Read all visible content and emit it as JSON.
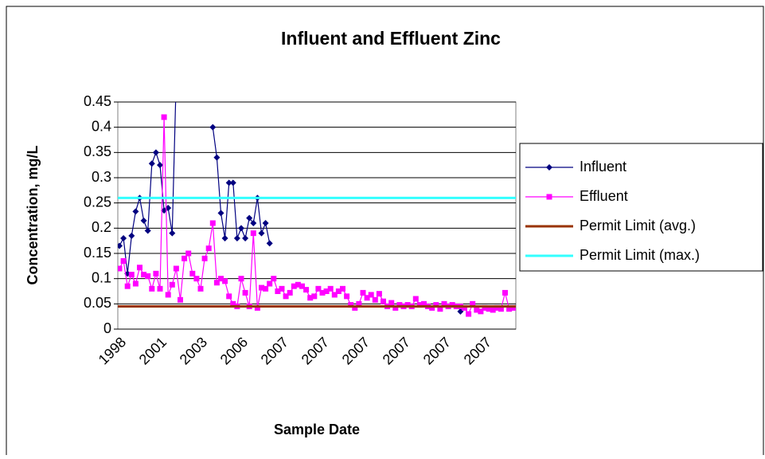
{
  "chart_data": {
    "type": "line",
    "title": "Influent and Effluent Zinc",
    "x_label": "Sample Date",
    "y_label": "Concentration, mg/L",
    "categories": [
      "1998",
      null,
      null,
      null,
      null,
      null,
      null,
      null,
      null,
      null,
      "2001",
      null,
      null,
      null,
      null,
      null,
      null,
      null,
      null,
      null,
      "2003",
      null,
      null,
      null,
      null,
      null,
      null,
      null,
      null,
      null,
      "2006",
      null,
      null,
      null,
      null,
      null,
      null,
      null,
      null,
      null,
      "2007",
      null,
      null,
      null,
      null,
      null,
      null,
      null,
      null,
      null,
      "2007",
      null,
      null,
      null,
      null,
      null,
      null,
      null,
      null,
      null,
      "2007",
      null,
      null,
      null,
      null,
      null,
      null,
      null,
      null,
      null,
      "2007",
      null,
      null,
      null,
      null,
      null,
      null,
      null,
      null,
      null,
      "2007",
      null,
      null,
      null,
      null,
      null,
      null,
      null,
      null,
      null,
      "2007",
      null,
      null,
      null,
      null,
      null,
      null,
      null
    ],
    "series": [
      {
        "name": "Influent",
        "color": "#000080",
        "marker": "diamond",
        "values": [
          0.165,
          0.18,
          0.11,
          0.185,
          0.233,
          0.26,
          0.215,
          0.195,
          0.328,
          0.35,
          0.325,
          0.235,
          0.24,
          0.19,
          0.5,
          null,
          null,
          null,
          null,
          null,
          null,
          null,
          null,
          0.4,
          0.34,
          0.23,
          0.18,
          0.29,
          0.29,
          0.18,
          0.2,
          0.18,
          0.22,
          0.21,
          0.26,
          0.19,
          0.21,
          0.17,
          null,
          null,
          null,
          null,
          null,
          null,
          null,
          null,
          null,
          null,
          null,
          null,
          null,
          null,
          null,
          null,
          null,
          null,
          null,
          null,
          null,
          null,
          null,
          null,
          null,
          null,
          null,
          null,
          null,
          null,
          null,
          null,
          null,
          null,
          null,
          null,
          null,
          null,
          null,
          null,
          null,
          null,
          null,
          null,
          null,
          null,
          0.035,
          null,
          null,
          null,
          null,
          null,
          null,
          null,
          null,
          null,
          null,
          null,
          null,
          null
        ]
      },
      {
        "name": "Effluent",
        "color": "#ff00ff",
        "marker": "square",
        "values": [
          0.12,
          0.135,
          0.085,
          0.108,
          0.09,
          0.122,
          0.108,
          0.105,
          0.08,
          0.11,
          0.08,
          0.42,
          0.068,
          0.088,
          0.12,
          0.058,
          0.14,
          0.15,
          0.11,
          0.1,
          0.08,
          0.14,
          0.16,
          0.21,
          0.092,
          0.1,
          0.095,
          0.065,
          0.05,
          0.045,
          0.1,
          0.072,
          0.045,
          0.19,
          0.042,
          0.082,
          0.08,
          0.09,
          0.1,
          0.075,
          0.08,
          0.065,
          0.072,
          0.085,
          0.088,
          0.085,
          0.078,
          0.062,
          0.065,
          0.08,
          0.072,
          0.075,
          0.08,
          0.068,
          0.075,
          0.08,
          0.065,
          0.048,
          0.042,
          0.05,
          0.072,
          0.062,
          0.068,
          0.058,
          0.07,
          0.055,
          0.045,
          0.052,
          0.042,
          0.048,
          0.045,
          0.048,
          0.045,
          0.06,
          0.048,
          0.05,
          0.045,
          0.042,
          0.048,
          0.04,
          0.05,
          0.045,
          0.048,
          0.045,
          0.045,
          0.042,
          0.03,
          0.05,
          0.038,
          0.035,
          0.042,
          0.04,
          0.038,
          0.042,
          0.04,
          0.072,
          0.04,
          0.042
        ]
      },
      {
        "name": "Permit Limit (avg.)",
        "color": "#993300",
        "value": 0.045
      },
      {
        "name": "Permit Limit (max.)",
        "color": "#33ffff",
        "value": 0.26
      }
    ],
    "ylim": [
      0,
      0.45
    ],
    "yticks": [
      0,
      0.05,
      0.1,
      0.15,
      0.2,
      0.25,
      0.3,
      0.35,
      0.4,
      0.45
    ],
    "grid": true,
    "legend": "right"
  }
}
